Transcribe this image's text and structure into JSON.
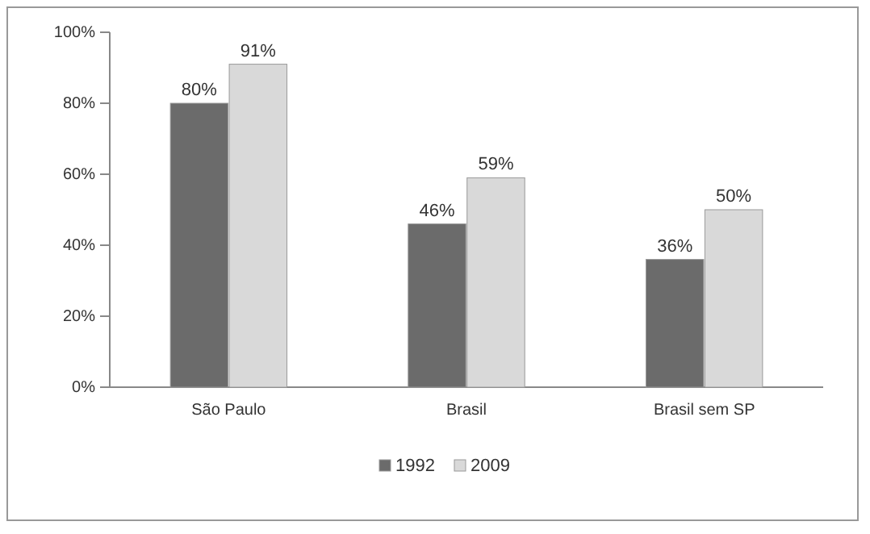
{
  "chart_data": {
    "type": "bar",
    "categories": [
      "São Paulo",
      "Brasil",
      "Brasil sem SP"
    ],
    "series": [
      {
        "name": "1992",
        "color": "#6b6b6b",
        "values": [
          80,
          46,
          36
        ],
        "value_labels": [
          "80%",
          "46%",
          "36%"
        ]
      },
      {
        "name": "2009",
        "color": "#d9d9d9",
        "values": [
          91,
          59,
          50
        ],
        "value_labels": [
          "91%",
          "59%",
          "50%"
        ]
      }
    ],
    "ylim": [
      0,
      100
    ],
    "yticks": [
      {
        "value": 0,
        "label": "0%"
      },
      {
        "value": 20,
        "label": "20%"
      },
      {
        "value": 40,
        "label": "40%"
      },
      {
        "value": 60,
        "label": "60%"
      },
      {
        "value": 80,
        "label": "80%"
      },
      {
        "value": 100,
        "label": "100%"
      }
    ],
    "legend": "bottom"
  }
}
